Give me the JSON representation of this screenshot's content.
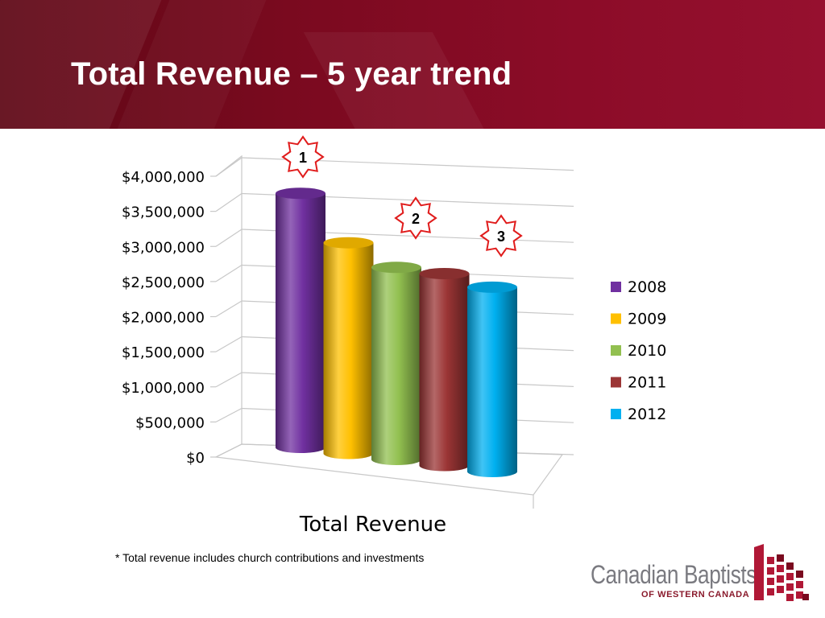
{
  "slide": {
    "title": "Total Revenue – 5 year trend",
    "footnote": "* Total revenue includes church contributions and investments",
    "logo": {
      "name": "Canadian Baptists",
      "subtitle": "OF WESTERN CANADA",
      "mark_icon": "building-blocks-icon",
      "colors": [
        "#b01836",
        "#7a0a1f"
      ]
    }
  },
  "chart_data": {
    "type": "bar",
    "style": "3d-cylinder",
    "xlabel": "Total Revenue",
    "categories": [
      "Total Revenue"
    ],
    "series": [
      {
        "name": "2008",
        "values": [
          3770000
        ],
        "color": "#7030a0"
      },
      {
        "name": "2009",
        "values": [
          3070000
        ],
        "color": "#ffc000"
      },
      {
        "name": "2010",
        "values": [
          2750000
        ],
        "color": "#92c050"
      },
      {
        "name": "2011",
        "values": [
          2700000
        ],
        "color": "#9b3535"
      },
      {
        "name": "2012",
        "values": [
          2550000
        ],
        "color": "#00b0f0"
      }
    ],
    "ylim": [
      0,
      4000000
    ],
    "yticks": [
      "$0",
      "$500,000",
      "$1,000,000",
      "$1,500,000",
      "$2,000,000",
      "$2,500,000",
      "$3,000,000",
      "$3,500,000",
      "$4,000,000"
    ],
    "grid": true,
    "legend": {
      "position": "right"
    },
    "annotations": [
      {
        "label": "1",
        "series": "2008"
      },
      {
        "label": "2",
        "series": "2010"
      },
      {
        "label": "3",
        "series": "2012"
      }
    ]
  }
}
